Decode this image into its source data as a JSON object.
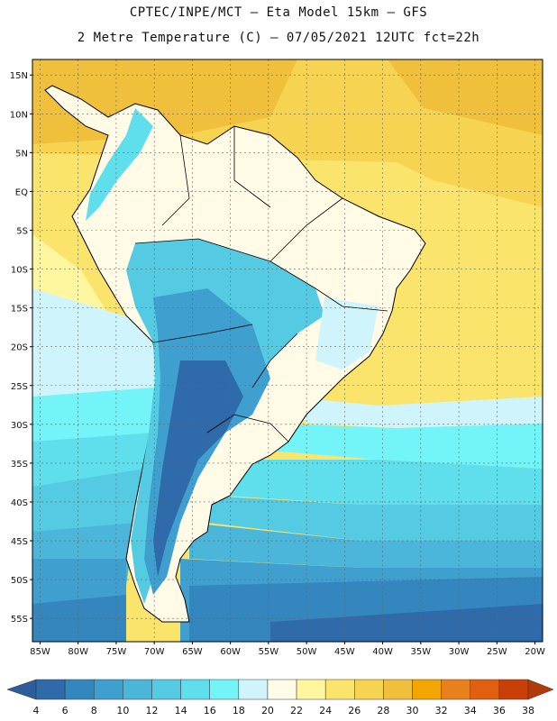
{
  "title": {
    "line1": "CPTEC/INPE/MCT –  Eta Model 15km – GFS",
    "line2": "2 Metre Temperature (C) – 07/05/2021 12UTC fct=22h"
  },
  "map": {
    "lat_labels": [
      "15N",
      "10N",
      "5N",
      "EQ",
      "5S",
      "10S",
      "15S",
      "20S",
      "25S",
      "30S",
      "35S",
      "40S",
      "45S",
      "50S",
      "55S"
    ],
    "lon_labels": [
      "85W",
      "80W",
      "75W",
      "70W",
      "65W",
      "60W",
      "55W",
      "50W",
      "45W",
      "40W",
      "35W",
      "30W",
      "25W",
      "20W"
    ],
    "lon_range": [
      -86,
      -19
    ],
    "lat_range": [
      -58,
      17
    ],
    "colors": {
      "lt4": "#2e5d9c",
      "c4_6": "#2f6aaa",
      "c6_8": "#3486bf",
      "c8_10": "#3f9fce",
      "c10_12": "#4bb6da",
      "c12_14": "#55cbe3",
      "c14_16": "#5fdfec",
      "c16_18": "#72f4f8",
      "c18_20": "#d0f4fc",
      "c20_22": "#fffbe6",
      "c22_24": "#fff7a0",
      "c24_26": "#fbe46c",
      "c26_28": "#f6d452",
      "c28_30": "#f0c03c",
      "c30_32": "#f3a500",
      "c32_34": "#e8801c",
      "c34_36": "#e06010",
      "c36_38": "#c84008",
      "gt38": "#b23a0a"
    }
  },
  "colorbar": {
    "labels": [
      "4",
      "6",
      "8",
      "10",
      "12",
      "14",
      "16",
      "18",
      "20",
      "22",
      "24",
      "26",
      "28",
      "30",
      "32",
      "34",
      "36",
      "38"
    ],
    "colors": [
      "#2e5d9c",
      "#2f6aaa",
      "#3486bf",
      "#3f9fce",
      "#4bb6da",
      "#55cbe3",
      "#5fdfec",
      "#72f4f8",
      "#d0f4fc",
      "#fffbe6",
      "#fff7a0",
      "#fbe46c",
      "#f6d452",
      "#f0c03c",
      "#f3a500",
      "#e8801c",
      "#e06010",
      "#c84008",
      "#b23a0a"
    ]
  }
}
